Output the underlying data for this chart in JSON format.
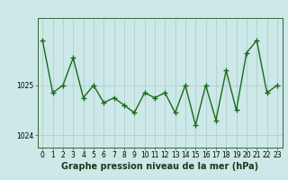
{
  "x": [
    0,
    1,
    2,
    3,
    4,
    5,
    6,
    7,
    8,
    9,
    10,
    11,
    12,
    13,
    14,
    15,
    16,
    17,
    18,
    19,
    20,
    21,
    22,
    23
  ],
  "y": [
    1025.9,
    1024.85,
    1025.0,
    1025.55,
    1024.75,
    1025.0,
    1024.65,
    1024.75,
    1024.6,
    1024.45,
    1024.85,
    1024.75,
    1024.85,
    1024.45,
    1025.0,
    1024.2,
    1025.0,
    1024.3,
    1025.3,
    1024.5,
    1025.65,
    1025.9,
    1024.85,
    1025.0
  ],
  "line_color": "#1a6b1a",
  "marker_color": "#1a6b1a",
  "bg_color": "#cce8e8",
  "plot_bg_color": "#cce8e8",
  "grid_color": "#b0c8c8",
  "xlabel": "Graphe pression niveau de la mer (hPa)",
  "xlabel_fontsize": 7.0,
  "ylabel_ticks": [
    1024,
    1025
  ],
  "xlim": [
    -0.5,
    23.5
  ],
  "ylim": [
    1023.75,
    1026.35
  ],
  "xtick_labels": [
    "0",
    "1",
    "2",
    "3",
    "4",
    "5",
    "6",
    "7",
    "8",
    "9",
    "10",
    "11",
    "12",
    "13",
    "14",
    "15",
    "16",
    "17",
    "18",
    "19",
    "20",
    "21",
    "22",
    "23"
  ],
  "tick_fontsize": 5.5,
  "marker_size": 4,
  "line_width": 1.0
}
